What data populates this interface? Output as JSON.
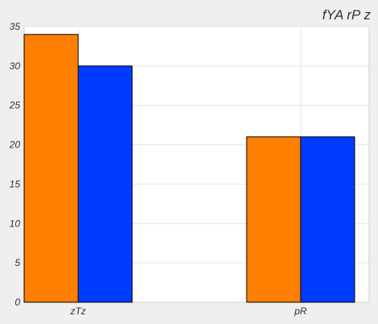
{
  "chart_data": {
    "type": "bar",
    "title": "fYA rP z",
    "xlabel": "",
    "ylabel": "",
    "categories": [
      "zTz",
      "pR"
    ],
    "series": [
      {
        "values": [
          34,
          21
        ],
        "color": "#ff7f00"
      },
      {
        "values": [
          30,
          21
        ],
        "color": "#003cff"
      }
    ],
    "ylim": [
      0,
      35
    ],
    "yticks": [
      0,
      5,
      10,
      15,
      20,
      25,
      30,
      35
    ],
    "grid": true,
    "legend": "none"
  },
  "colors": {
    "background": "#efefef",
    "plot_background": "#ffffff",
    "grid": "#e6e6e6",
    "text": "#333333"
  }
}
